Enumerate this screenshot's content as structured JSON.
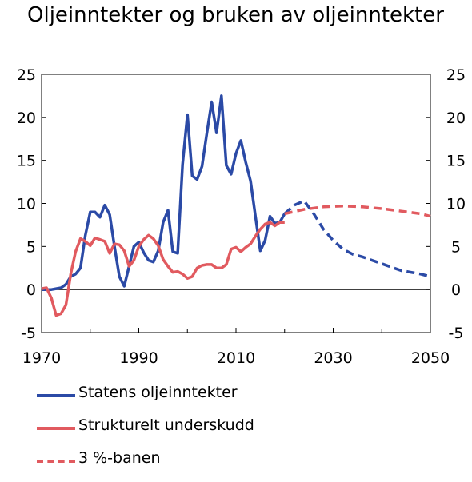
{
  "chart_data": {
    "type": "line",
    "title": "Oljeinntekter og bruken av oljeinntekter",
    "xlabel": "",
    "ylabel": "",
    "xlim": [
      1970,
      2050
    ],
    "ylim": [
      -5,
      25
    ],
    "x_ticks": [
      "1970",
      "1990",
      "2010",
      "2030",
      "2050"
    ],
    "y_ticks_left": [
      "25",
      "20",
      "15",
      "10",
      "5",
      "0",
      "-5"
    ],
    "y_ticks_right": [
      "25",
      "20",
      "15",
      "10",
      "5",
      "0",
      "-5"
    ],
    "grid": false,
    "legend_position": "bottom-left",
    "series": [
      {
        "name": "Statens oljeinntekter",
        "color": "#2b4aa6",
        "style": "solid",
        "x": [
          1970,
          1971,
          1972,
          1973,
          1974,
          1975,
          1976,
          1977,
          1978,
          1979,
          1980,
          1981,
          1982,
          1983,
          1984,
          1985,
          1986,
          1987,
          1988,
          1989,
          1990,
          1991,
          1992,
          1993,
          1994,
          1995,
          1996,
          1997,
          1998,
          1999,
          2000,
          2001,
          2002,
          2003,
          2004,
          2005,
          2006,
          2007,
          2008,
          2009,
          2010,
          2011,
          2012,
          2013,
          2014,
          2015,
          2016,
          2017,
          2018,
          2019,
          2020
        ],
        "y": [
          0,
          0,
          0,
          0.1,
          0.2,
          0.6,
          1.5,
          1.8,
          2.5,
          6.3,
          9,
          9,
          8.4,
          9.8,
          8.7,
          5,
          1.5,
          0.4,
          2.7,
          5,
          5.5,
          4.3,
          3.4,
          3.2,
          4.5,
          7.8,
          9.2,
          4.4,
          4.2,
          14.5,
          20.3,
          13.2,
          12.8,
          14.3,
          18.1,
          21.8,
          18.2,
          22.5,
          14.4,
          13.4,
          15.8,
          17.3,
          14.8,
          12.6,
          8.5,
          4.5,
          5.7,
          8.5,
          7.7,
          7.8,
          8.8
        ]
      },
      {
        "name": "",
        "color": "#2b4aa6",
        "style": "dashed",
        "x": [
          2020,
          2022,
          2024,
          2026,
          2028,
          2030,
          2032,
          2034,
          2036,
          2038,
          2040,
          2042,
          2044,
          2046,
          2048,
          2050
        ],
        "y": [
          8.8,
          9.8,
          10.3,
          8.8,
          7,
          5.7,
          4.7,
          4.1,
          3.8,
          3.4,
          3,
          2.6,
          2.2,
          2.0,
          1.8,
          1.5
        ]
      },
      {
        "name": "Strukturelt underskudd",
        "color": "#e15a5f",
        "style": "solid",
        "x": [
          1970,
          1971,
          1972,
          1973,
          1974,
          1975,
          1976,
          1977,
          1978,
          1979,
          1980,
          1981,
          1982,
          1983,
          1984,
          1985,
          1986,
          1987,
          1988,
          1989,
          1990,
          1991,
          1992,
          1993,
          1994,
          1995,
          1996,
          1997,
          1998,
          1999,
          2000,
          2001,
          2002,
          2003,
          2004,
          2005,
          2006,
          2007,
          2008,
          2009,
          2010,
          2011,
          2012,
          2013,
          2014,
          2015,
          2016,
          2017,
          2018,
          2019,
          2020
        ],
        "y": [
          0.1,
          0.2,
          -1,
          -3,
          -2.8,
          -1.8,
          1.8,
          4.4,
          5.9,
          5.6,
          5.1,
          6,
          5.8,
          5.6,
          4.2,
          5.3,
          5.2,
          4.5,
          2.7,
          3.4,
          5,
          5.8,
          6.3,
          5.9,
          5.1,
          3.5,
          2.7,
          2.0,
          2.1,
          1.8,
          1.3,
          1.5,
          2.5,
          2.8,
          2.9,
          2.9,
          2.5,
          2.5,
          2.9,
          4.7,
          4.9,
          4.4,
          4.9,
          5.3,
          6.2,
          7,
          7.6,
          7.8,
          7.4,
          7.8,
          7.8
        ]
      },
      {
        "name": "3 %-banen",
        "color": "#e15a5f",
        "style": "dashed",
        "x": [
          2020,
          2024,
          2028,
          2032,
          2036,
          2040,
          2044,
          2048,
          2050
        ],
        "y": [
          8.8,
          9.3,
          9.6,
          9.7,
          9.6,
          9.4,
          9.1,
          8.8,
          8.5
        ]
      }
    ]
  }
}
